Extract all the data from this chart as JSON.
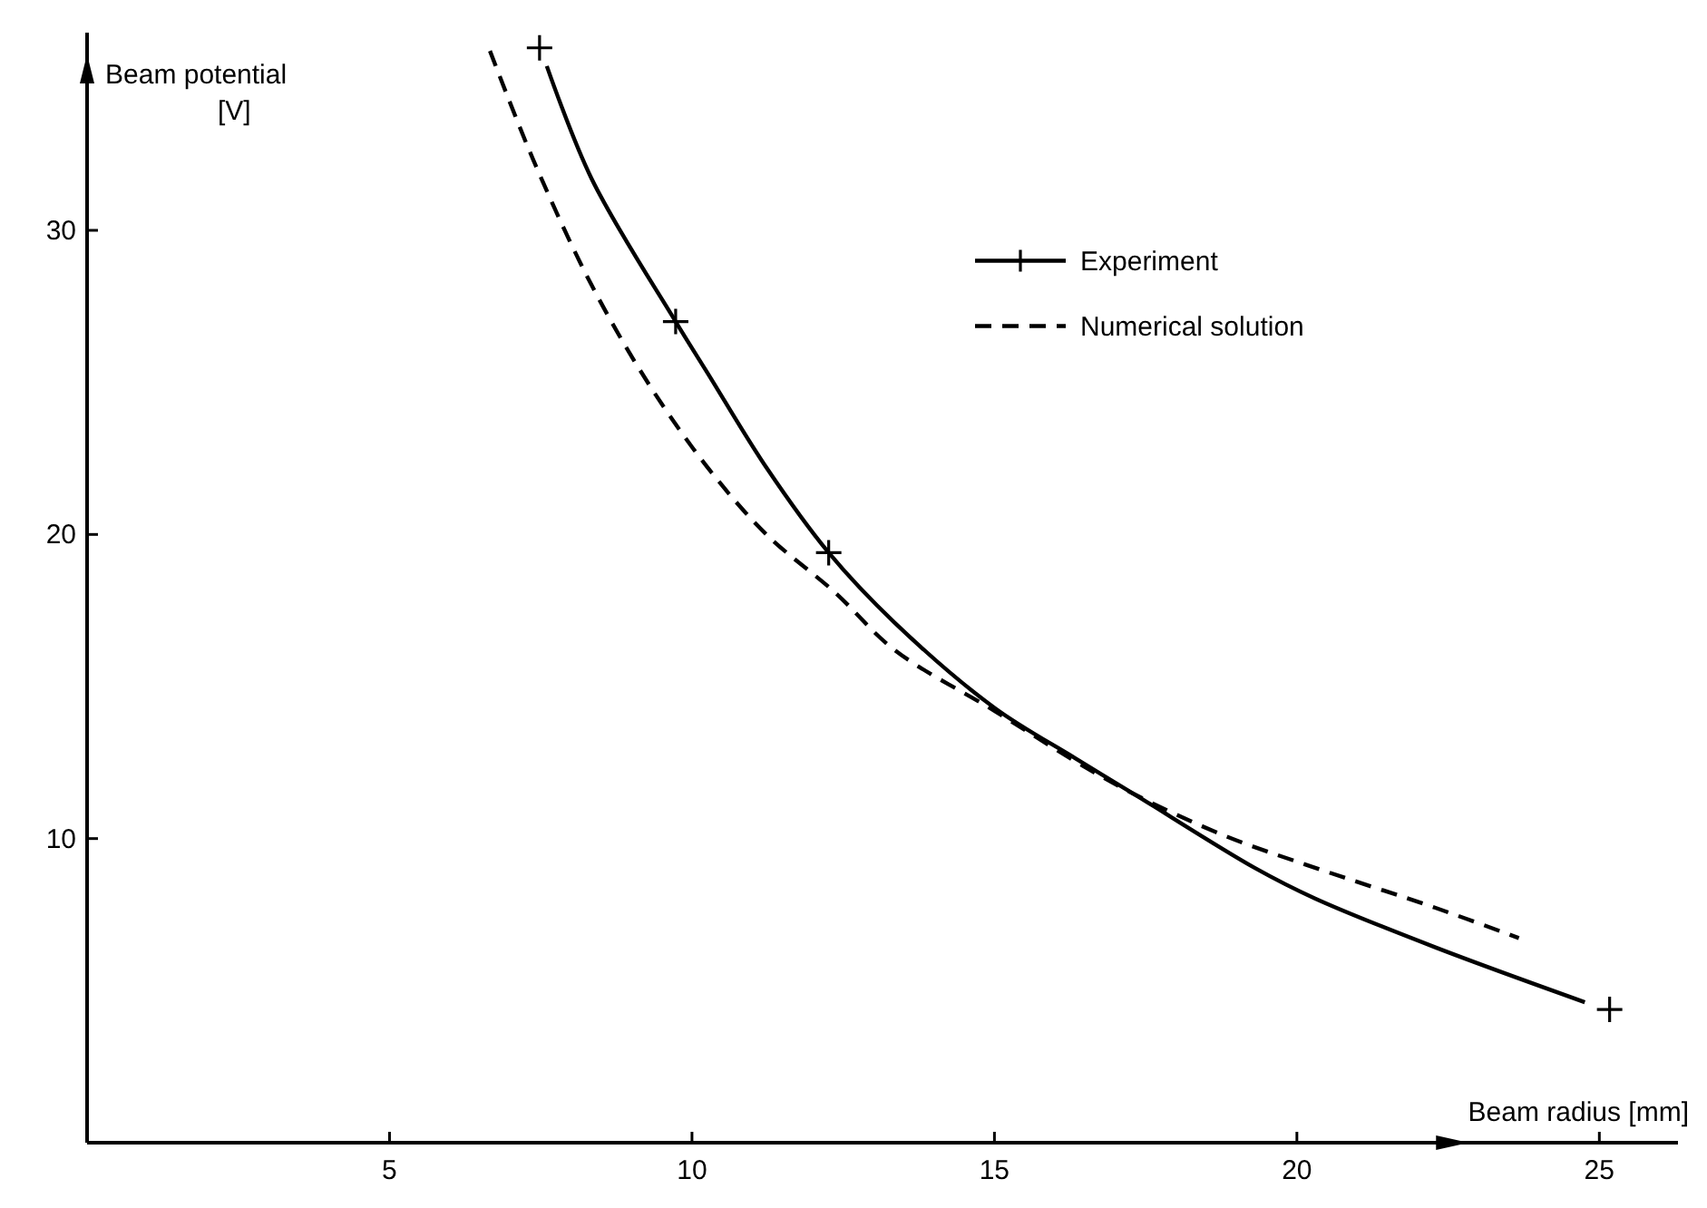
{
  "chart_data": {
    "type": "line",
    "xlabel": "Beam radius [mm]",
    "ylabel": "Beam potential\n[V]",
    "xlim": [
      0,
      26.3
    ],
    "ylim": [
      0,
      36.5
    ],
    "xticks": [
      5,
      10,
      15,
      20,
      25
    ],
    "yticks": [
      10,
      20,
      30
    ],
    "legend": "top right",
    "grid": false,
    "series": [
      {
        "name": "Experiment",
        "color": "#000000",
        "line_style": "solid",
        "marker": "none",
        "x": [
          7.6,
          8.34,
          9.73,
          10.26,
          11.23,
          12.26,
          13.35,
          15,
          16.33,
          17.32,
          19.3,
          20.3,
          22.28,
          24.76
        ],
        "values": [
          35.4,
          31.7,
          27.0,
          25.3,
          22.2,
          19.4,
          17.1,
          14.3,
          12.65,
          11.45,
          9.04,
          8.03,
          6.43,
          4.62
        ]
      },
      {
        "type": "scatter",
        "color": "#000000",
        "marker": "cross",
        "x": [
          7.48,
          9.73,
          12.26,
          25.17
        ],
        "values": [
          36.0,
          27.0,
          19.4,
          4.38
        ]
      },
      {
        "name": "Numerical solution",
        "color": "#000000",
        "line_style": "dashed",
        "marker": "none",
        "x": [
          6.66,
          7.38,
          8.34,
          9.3,
          10.26,
          11.23,
          12.36,
          13.35,
          15,
          16.33,
          17.32,
          18.8,
          20.3,
          22.28,
          23.67
        ],
        "values": [
          35.9,
          32.3,
          28.2,
          24.9,
          22.2,
          20.0,
          18.1,
          16.2,
          14.2,
          12.55,
          11.45,
          10.1,
          9.04,
          7.73,
          6.73
        ]
      }
    ]
  }
}
